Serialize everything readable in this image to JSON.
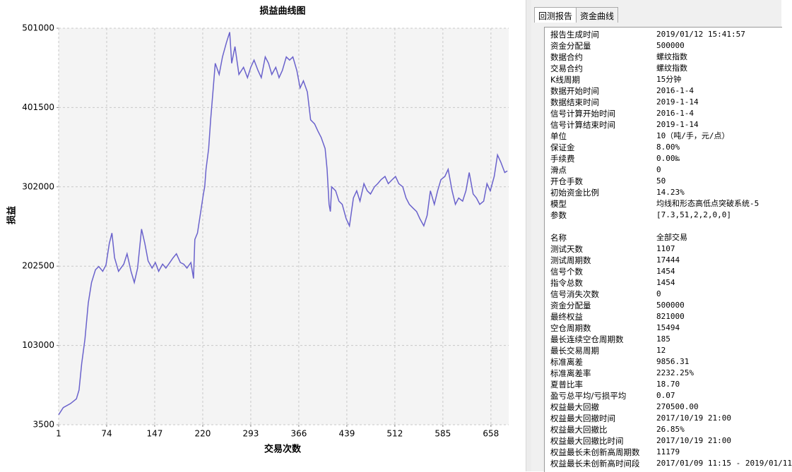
{
  "chart_data": {
    "type": "line",
    "title": "损益曲线图",
    "y_label": "损益",
    "x_label": "交易次数",
    "color": "#6a62cc",
    "grid": true,
    "xlim": [
      1,
      685
    ],
    "xticks": [
      1,
      74,
      147,
      220,
      293,
      366,
      439,
      512,
      585,
      658
    ],
    "ylim": [
      3500,
      501000
    ],
    "yticks": [
      3500,
      103000,
      202500,
      302000,
      401500,
      501000
    ],
    "x": [
      1,
      8,
      19,
      28,
      32,
      36,
      41,
      46,
      51,
      57,
      62,
      68,
      73,
      78,
      82,
      86,
      92,
      100,
      105,
      111,
      116,
      121,
      127,
      132,
      137,
      143,
      148,
      153,
      159,
      164,
      170,
      175,
      180,
      186,
      191,
      196,
      202,
      206,
      208,
      212,
      217,
      221,
      223,
      225,
      229,
      232,
      236,
      239,
      245,
      250,
      256,
      261,
      264,
      269,
      275,
      282,
      288,
      293,
      298,
      304,
      309,
      315,
      320,
      325,
      331,
      336,
      341,
      347,
      352,
      357,
      363,
      368,
      373,
      379,
      384,
      390,
      395,
      400,
      406,
      409,
      412,
      414,
      416,
      422,
      427,
      432,
      438,
      443,
      449,
      454,
      459,
      465,
      470,
      475,
      481,
      486,
      491,
      497,
      502,
      508,
      513,
      518,
      524,
      529,
      534,
      540,
      545,
      550,
      556,
      561,
      566,
      572,
      577,
      582,
      588,
      593,
      599,
      604,
      609,
      615,
      620,
      625,
      631,
      636,
      641,
      647,
      652,
      657,
      663,
      668,
      673,
      679,
      683
    ],
    "values": [
      16000,
      25000,
      30000,
      36000,
      47000,
      80000,
      111000,
      156000,
      182000,
      198000,
      202000,
      196000,
      204000,
      231000,
      244000,
      213000,
      196000,
      205000,
      218000,
      196000,
      182000,
      200000,
      249000,
      231000,
      209000,
      200000,
      207000,
      196000,
      205000,
      200000,
      207000,
      213000,
      218000,
      207000,
      205000,
      200000,
      207000,
      187000,
      236000,
      244000,
      271000,
      293000,
      302000,
      324000,
      350000,
      386000,
      426000,
      457000,
      443000,
      465000,
      483000,
      496000,
      457000,
      478000,
      443000,
      452000,
      439000,
      452000,
      461000,
      448000,
      439000,
      465000,
      457000,
      443000,
      452000,
      439000,
      448000,
      465000,
      461000,
      465000,
      448000,
      426000,
      435000,
      421000,
      386000,
      381000,
      372000,
      364000,
      350000,
      324000,
      280000,
      271000,
      302000,
      297000,
      284000,
      280000,
      262000,
      253000,
      288000,
      297000,
      284000,
      306000,
      297000,
      293000,
      302000,
      306000,
      311000,
      315000,
      306000,
      311000,
      315000,
      306000,
      302000,
      288000,
      280000,
      275000,
      271000,
      262000,
      253000,
      266000,
      297000,
      280000,
      297000,
      311000,
      315000,
      324000,
      297000,
      280000,
      288000,
      284000,
      297000,
      320000,
      293000,
      288000,
      280000,
      284000,
      306000,
      297000,
      315000,
      342000,
      333000,
      320000,
      322000
    ]
  },
  "report": {
    "tabs": [
      "回测报告",
      "资金曲线"
    ],
    "sections": [
      {
        "rows": [
          [
            "报告生成时间",
            "2019/01/12 15:41:57"
          ],
          [
            "资金分配量",
            "500000"
          ],
          [
            "数据合约",
            "螺纹指数"
          ],
          [
            "交易合约",
            "螺纹指数"
          ],
          [
            "K线周期",
            "15分钟"
          ],
          [
            "数据开始时间",
            "2016-1-4"
          ],
          [
            "数据结束时间",
            "2019-1-14"
          ],
          [
            "信号计算开始时间",
            "2016-1-4"
          ],
          [
            "信号计算结束时间",
            "2019-1-14"
          ],
          [
            "单位",
            "10（吨/手，元/点）"
          ],
          [
            "保证金",
            "8.00%"
          ],
          [
            "手续费",
            "0.00‰"
          ],
          [
            "滑点",
            "0"
          ],
          [
            "开仓手数",
            "50"
          ],
          [
            "初始资金比例",
            "14.23%"
          ],
          [
            "模型",
            "均线和形态高低点突破系统-5"
          ],
          [
            "参数",
            "[7.3,51,2,2,0,0]"
          ]
        ]
      },
      {
        "rows": [
          [
            "名称",
            "全部交易"
          ],
          [
            "测试天数",
            "1107"
          ],
          [
            "测试周期数",
            "17444"
          ],
          [
            "信号个数",
            "1454"
          ],
          [
            "指令总数",
            "1454"
          ],
          [
            "信号消失次数",
            "0"
          ],
          [
            "资金分配量",
            "500000"
          ],
          [
            "最终权益",
            "821000"
          ],
          [
            "空仓周期数",
            "15494"
          ],
          [
            "最长连续空仓周期数",
            "185"
          ],
          [
            "最长交易周期",
            "12"
          ],
          [
            "标准离差",
            "9856.31"
          ],
          [
            "标准离差率",
            "2232.25%"
          ],
          [
            "夏普比率",
            "18.70"
          ],
          [
            "盈亏总平均/亏损平均",
            "0.07"
          ],
          [
            "权益最大回撤",
            "270500.00"
          ],
          [
            "权益最大回撤时间",
            "2017/10/19 21:00"
          ],
          [
            "权益最大回撤比",
            "26.85%"
          ],
          [
            "权益最大回撤比时间",
            "2017/10/19 21:00"
          ],
          [
            "权益最长未创新高周期数",
            "11179"
          ],
          [
            "权益最长未创新高时间段",
            "2017/01/09 11:15 - 2019/01/11"
          ]
        ]
      }
    ]
  }
}
